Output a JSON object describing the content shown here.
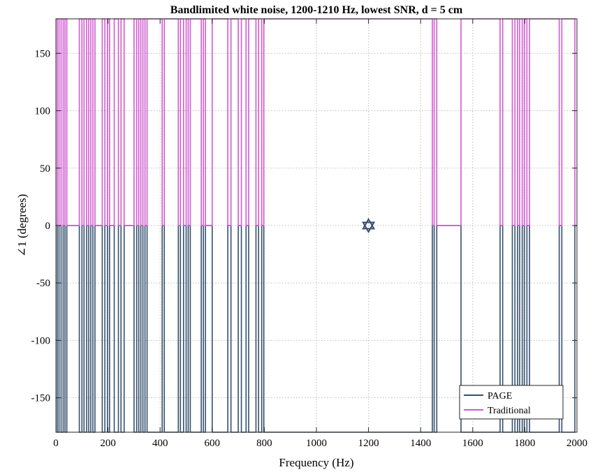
{
  "chart_data": {
    "type": "line",
    "title": "Bandlimited white noise, 1200-1210 Hz, lowest SNR, d = 5 cm",
    "xlabel": "Frequency (Hz)",
    "ylabel": "∠1 (degrees)",
    "xlim": [
      0,
      2000
    ],
    "ylim": [
      -180,
      180
    ],
    "x_ticks": [
      "0",
      "200",
      "400",
      "600",
      "800",
      "1000",
      "1200",
      "1400",
      "1600",
      "1800",
      "2000"
    ],
    "y_ticks": [
      "150",
      "100",
      "50",
      "0",
      "-50",
      "-100",
      "-150"
    ],
    "grid": true,
    "legend_position": "bottom-right",
    "legend": [
      "PAGE",
      "Traditional"
    ],
    "colors": {
      "PAGE": "#34506e",
      "Traditional": "#d15ad0",
      "marker": "#34506e"
    },
    "series": [
      {
        "name": "PAGE",
        "kind": "phase-jumps",
        "baseline": 0,
        "extreme": -180,
        "jump_frequencies": [
          5,
          12,
          20,
          28,
          35,
          42,
          90,
          100,
          108,
          118,
          126,
          134,
          142,
          150,
          178,
          188,
          198,
          206,
          224,
          240,
          250,
          262,
          300,
          310,
          318,
          326,
          334,
          342,
          350,
          408,
          416,
          470,
          478,
          490,
          500,
          508,
          516,
          558,
          566,
          574,
          600,
          660,
          672,
          700,
          712,
          730,
          740,
          768,
          778,
          790,
          798,
          1445,
          1452,
          1462,
          1555,
          1705,
          1715,
          1752,
          1762,
          1772,
          1780,
          1790,
          1798,
          1808,
          1818,
          1932,
          1942,
          1992
        ]
      },
      {
        "name": "Traditional",
        "kind": "phase-jumps",
        "baseline": 0,
        "extreme": 180,
        "jump_frequencies": [
          5,
          12,
          20,
          28,
          35,
          42,
          90,
          100,
          108,
          118,
          126,
          134,
          142,
          150,
          178,
          188,
          198,
          206,
          224,
          240,
          250,
          262,
          300,
          310,
          318,
          326,
          334,
          342,
          350,
          408,
          416,
          470,
          478,
          490,
          500,
          508,
          516,
          558,
          566,
          574,
          600,
          660,
          672,
          700,
          712,
          730,
          740,
          768,
          778,
          790,
          798,
          1445,
          1452,
          1462,
          1555,
          1705,
          1715,
          1752,
          1762,
          1772,
          1780,
          1790,
          1798,
          1808,
          1818,
          1932,
          1942,
          1992
        ]
      }
    ],
    "markers": [
      {
        "x": 1200,
        "y": 0,
        "symbol": "hexagram"
      }
    ]
  }
}
